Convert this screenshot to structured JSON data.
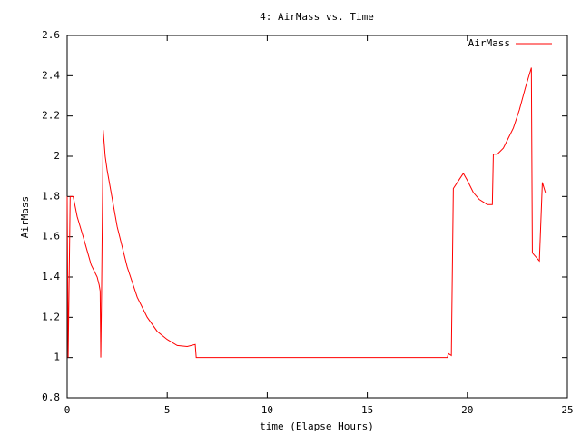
{
  "chart_data": {
    "type": "line",
    "title": "4: AirMass vs. Time",
    "x_label": "time (Elapse Hours)",
    "y_label": "AirMass",
    "x": [
      0,
      0.05,
      0.15,
      0.3,
      0.5,
      0.8,
      1.0,
      1.2,
      1.5,
      1.6,
      1.65,
      1.68,
      1.72,
      1.8,
      1.9,
      2.0,
      2.5,
      3.0,
      3.5,
      4.0,
      4.5,
      5.0,
      5.5,
      6.0,
      6.4,
      6.45,
      19.0,
      19.05,
      19.2,
      19.3,
      19.5,
      19.8,
      20.0,
      20.3,
      20.6,
      21.0,
      21.25,
      21.3,
      21.5,
      21.8,
      22.0,
      22.3,
      22.6,
      22.9,
      23.2,
      23.25,
      23.6,
      23.75,
      23.9
    ],
    "series": [
      {
        "name": "AirMass",
        "color": "#ff0000",
        "values": [
          1.8,
          1.0,
          1.8,
          1.8,
          1.7,
          1.6,
          1.53,
          1.46,
          1.4,
          1.36,
          1.33,
          1.0,
          1.32,
          2.13,
          2.0,
          1.93,
          1.65,
          1.45,
          1.3,
          1.2,
          1.13,
          1.09,
          1.06,
          1.055,
          1.065,
          1.0,
          1.0,
          1.02,
          1.01,
          1.84,
          1.87,
          1.915,
          1.88,
          1.82,
          1.785,
          1.76,
          1.76,
          2.01,
          2.01,
          2.04,
          2.08,
          2.14,
          2.23,
          2.34,
          2.44,
          1.52,
          1.48,
          1.87,
          1.82
        ]
      }
    ],
    "xlim": [
      0,
      25
    ],
    "xticks": [
      0,
      5,
      10,
      15,
      20,
      25
    ],
    "ylim": [
      0.8,
      2.6
    ],
    "yticks": [
      0.8,
      1,
      1.2,
      1.4,
      1.6,
      1.8,
      2,
      2.2,
      2.4,
      2.6
    ],
    "legend": "top-right"
  }
}
